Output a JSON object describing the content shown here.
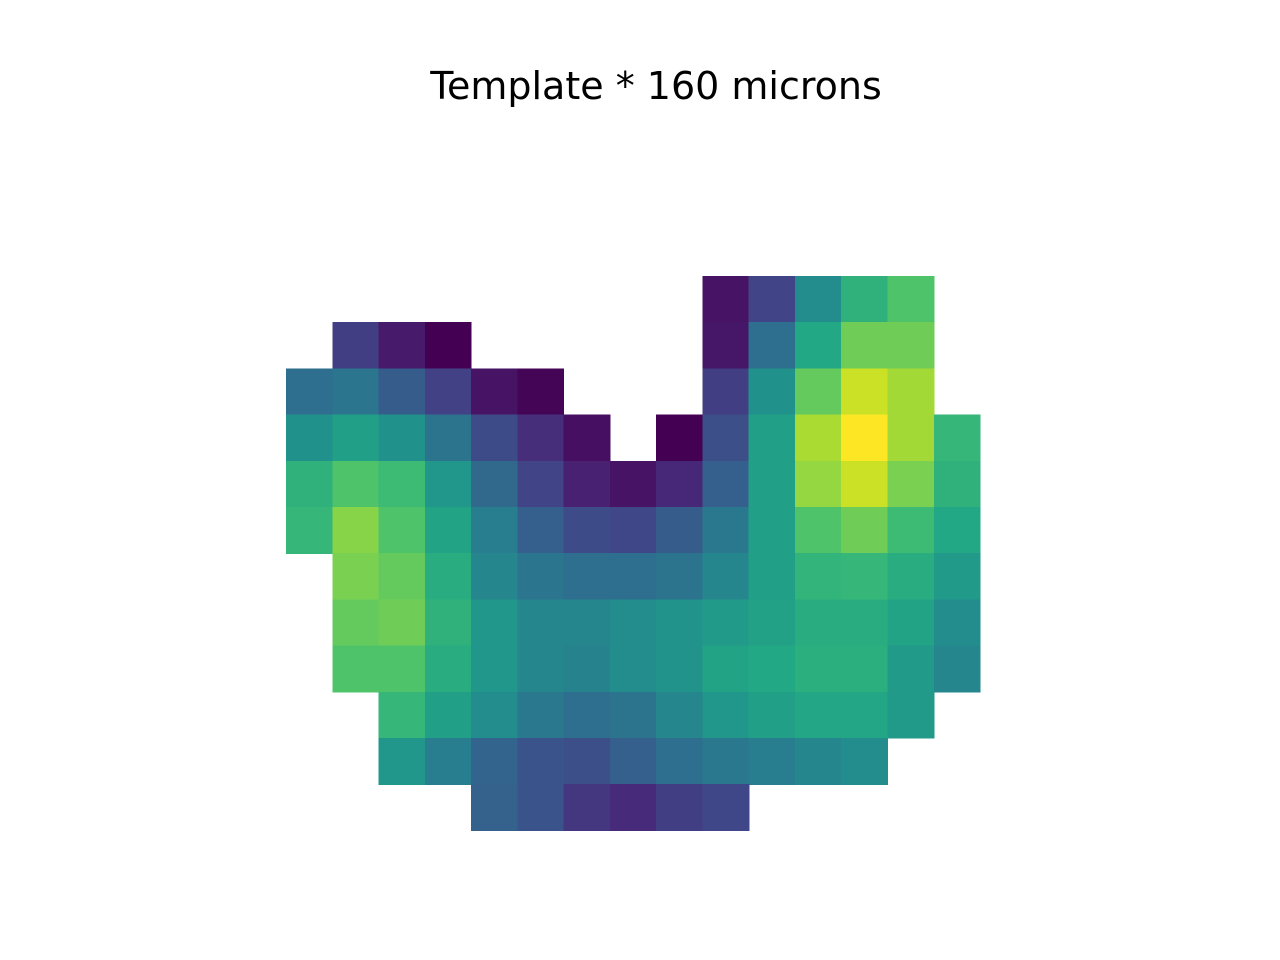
{
  "chart_data": {
    "type": "heatmap",
    "title": "Template * 160 microns",
    "colormap": "viridis",
    "value_range": [
      0,
      1
    ],
    "axes_visible": false,
    "grid": false,
    "legend": "none",
    "n_rows": 12,
    "n_cols": 15,
    "values": [
      [
        null,
        null,
        null,
        null,
        null,
        null,
        null,
        null,
        null,
        0.05,
        0.2,
        0.48,
        0.64,
        0.72,
        null
      ],
      [
        null,
        0.18,
        0.07,
        0.0,
        null,
        null,
        null,
        null,
        null,
        0.06,
        0.36,
        0.6,
        0.78,
        0.78,
        null
      ],
      [
        0.36,
        0.39,
        0.29,
        0.19,
        0.05,
        0.01,
        null,
        null,
        null,
        0.18,
        0.5,
        0.76,
        0.92,
        0.86,
        null
      ],
      [
        0.5,
        0.56,
        0.5,
        0.38,
        0.23,
        0.13,
        0.04,
        null,
        0.0,
        0.24,
        0.56,
        0.87,
        1.0,
        0.86,
        0.66
      ],
      [
        0.64,
        0.72,
        0.68,
        0.52,
        0.34,
        0.2,
        0.09,
        0.05,
        0.11,
        0.3,
        0.56,
        0.84,
        0.92,
        0.8,
        0.64
      ],
      [
        0.66,
        0.82,
        0.72,
        0.58,
        0.42,
        0.3,
        0.23,
        0.21,
        0.29,
        0.4,
        0.56,
        0.72,
        0.78,
        0.68,
        0.6
      ],
      [
        null,
        0.8,
        0.76,
        0.62,
        0.46,
        0.39,
        0.36,
        0.36,
        0.38,
        0.46,
        0.56,
        0.65,
        0.66,
        0.62,
        0.54
      ],
      [
        null,
        0.76,
        0.78,
        0.64,
        0.52,
        0.46,
        0.46,
        0.48,
        0.51,
        0.54,
        0.57,
        0.62,
        0.62,
        0.58,
        0.48
      ],
      [
        null,
        0.72,
        0.72,
        0.62,
        0.52,
        0.46,
        0.44,
        0.48,
        0.51,
        0.58,
        0.6,
        0.63,
        0.63,
        0.54,
        0.46
      ],
      [
        null,
        null,
        0.66,
        0.56,
        0.48,
        0.4,
        0.36,
        0.38,
        0.46,
        0.52,
        0.56,
        0.59,
        0.59,
        0.54,
        null
      ],
      [
        null,
        null,
        0.52,
        0.42,
        0.32,
        0.26,
        0.24,
        0.3,
        0.36,
        0.4,
        0.42,
        0.46,
        0.48,
        null,
        null
      ],
      [
        null,
        null,
        null,
        null,
        0.31,
        0.26,
        0.16,
        0.12,
        0.18,
        0.21,
        null,
        null,
        null,
        null,
        null
      ]
    ]
  }
}
